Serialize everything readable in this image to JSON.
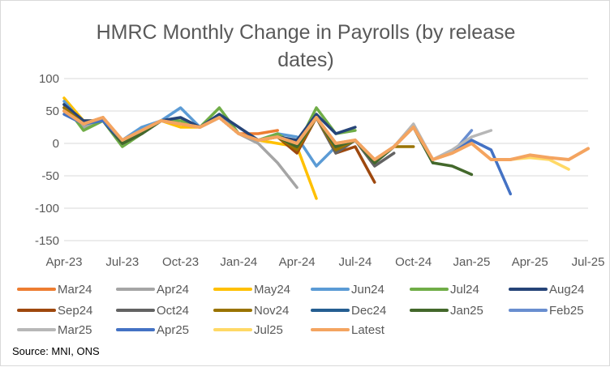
{
  "chart_data": {
    "type": "line",
    "title_lines": [
      "HMRC Monthly Change in Payrolls (by release",
      "dates)"
    ],
    "xlabel": "",
    "ylabel": "",
    "ylim": [
      -150,
      100
    ],
    "yticks": [
      -150,
      -100,
      -50,
      0,
      50,
      100
    ],
    "x_tick_labels": [
      "Apr-23",
      "Jul-23",
      "Oct-23",
      "Jan-24",
      "Apr-24",
      "Jul-24",
      "Oct-24",
      "Jan-25",
      "Apr-25",
      "Jul-25"
    ],
    "x_months": [
      "Apr-23",
      "May-23",
      "Jun-23",
      "Jul-23",
      "Aug-23",
      "Sep-23",
      "Oct-23",
      "Nov-23",
      "Dec-23",
      "Jan-24",
      "Feb-24",
      "Mar-24",
      "Apr-24",
      "May-24",
      "Jun-24",
      "Jul-24",
      "Aug-24",
      "Sep-24",
      "Oct-24",
      "Nov-24",
      "Dec-24",
      "Jan-25",
      "Feb-25",
      "Mar-25",
      "Apr-25",
      "May-25",
      "Jun-25",
      "Jul-25"
    ],
    "grid": "horizontal",
    "legend_position": "bottom",
    "series": [
      {
        "name": "Mar24",
        "color": "#ED7D31",
        "values": [
          60,
          30,
          40,
          5,
          20,
          35,
          30,
          25,
          40,
          15,
          15,
          20
        ]
      },
      {
        "name": "Apr24",
        "color": "#A5A5A5",
        "values": [
          60,
          25,
          35,
          5,
          20,
          35,
          30,
          25,
          40,
          15,
          0,
          -30,
          -68
        ]
      },
      {
        "name": "May24",
        "color": "#FFC000",
        "values": [
          70,
          35,
          35,
          5,
          20,
          35,
          25,
          25,
          40,
          15,
          5,
          0,
          -5,
          -85
        ]
      },
      {
        "name": "Jun24",
        "color": "#5B9BD5",
        "values": [
          65,
          30,
          35,
          5,
          25,
          35,
          55,
          25,
          45,
          15,
          5,
          15,
          10,
          -35,
          -5
        ]
      },
      {
        "name": "Jul24",
        "color": "#70AD47",
        "values": [
          60,
          20,
          35,
          -5,
          15,
          35,
          35,
          25,
          55,
          15,
          5,
          15,
          -5,
          55,
          15,
          20
        ]
      },
      {
        "name": "Aug24",
        "color": "#264478",
        "values": [
          60,
          35,
          35,
          0,
          15,
          35,
          40,
          25,
          45,
          25,
          5,
          10,
          5,
          45,
          15,
          25
        ]
      },
      {
        "name": "Sep24",
        "color": "#9E480E",
        "values": [
          55,
          30,
          40,
          0,
          15,
          35,
          30,
          25,
          40,
          15,
          5,
          10,
          -15,
          40,
          -15,
          -5,
          -60
        ]
      },
      {
        "name": "Oct24",
        "color": "#636363",
        "values": [
          55,
          30,
          40,
          0,
          15,
          35,
          30,
          25,
          40,
          15,
          5,
          10,
          -5,
          40,
          -15,
          5,
          -35,
          -15
        ]
      },
      {
        "name": "Nov24",
        "color": "#997300",
        "values": [
          55,
          30,
          40,
          0,
          15,
          35,
          30,
          25,
          40,
          15,
          5,
          10,
          -10,
          40,
          -10,
          5,
          -30,
          -5,
          -5
        ]
      },
      {
        "name": "Dec24",
        "color": "#255E91",
        "values": [
          50,
          30,
          40,
          0,
          15,
          35,
          30,
          25,
          40,
          15,
          5,
          10,
          -5,
          40,
          -5,
          5,
          -30,
          -5,
          25,
          -30
        ]
      },
      {
        "name": "Jan25",
        "color": "#43682B",
        "values": [
          50,
          30,
          40,
          0,
          15,
          35,
          30,
          25,
          40,
          15,
          5,
          10,
          -5,
          40,
          -5,
          5,
          -30,
          -5,
          25,
          -30,
          -35,
          -48
        ]
      },
      {
        "name": "Feb25",
        "color": "#698ED0",
        "values": [
          50,
          30,
          40,
          5,
          20,
          35,
          30,
          25,
          40,
          15,
          5,
          10,
          0,
          40,
          0,
          5,
          -25,
          -5,
          25,
          -25,
          -15,
          20
        ]
      },
      {
        "name": "Mar25",
        "color": "#B7B7B7",
        "values": [
          50,
          30,
          40,
          5,
          20,
          35,
          30,
          25,
          40,
          15,
          5,
          10,
          0,
          40,
          0,
          5,
          -25,
          -5,
          30,
          -25,
          -10,
          10,
          20
        ]
      },
      {
        "name": "Apr25",
        "color": "#4472C4",
        "values": [
          45,
          30,
          35,
          5,
          20,
          35,
          30,
          25,
          40,
          15,
          5,
          10,
          0,
          40,
          0,
          5,
          -25,
          -5,
          25,
          -25,
          -15,
          5,
          -10,
          -78
        ]
      },
      {
        "name": "Jul25",
        "color": "#FFD966",
        "values": [
          50,
          30,
          40,
          5,
          20,
          35,
          30,
          25,
          40,
          15,
          5,
          10,
          0,
          40,
          0,
          5,
          -25,
          -5,
          25,
          -25,
          -15,
          0,
          -25,
          -25,
          -22,
          -25,
          -40
        ]
      },
      {
        "name": "Latest",
        "color": "#F4A460",
        "values": [
          50,
          30,
          40,
          5,
          20,
          35,
          30,
          25,
          40,
          15,
          5,
          10,
          0,
          40,
          0,
          5,
          -25,
          -5,
          25,
          -25,
          -15,
          0,
          -25,
          -25,
          -18,
          -22,
          -25,
          -8
        ]
      }
    ]
  },
  "source": "Source: MNI, ONS"
}
